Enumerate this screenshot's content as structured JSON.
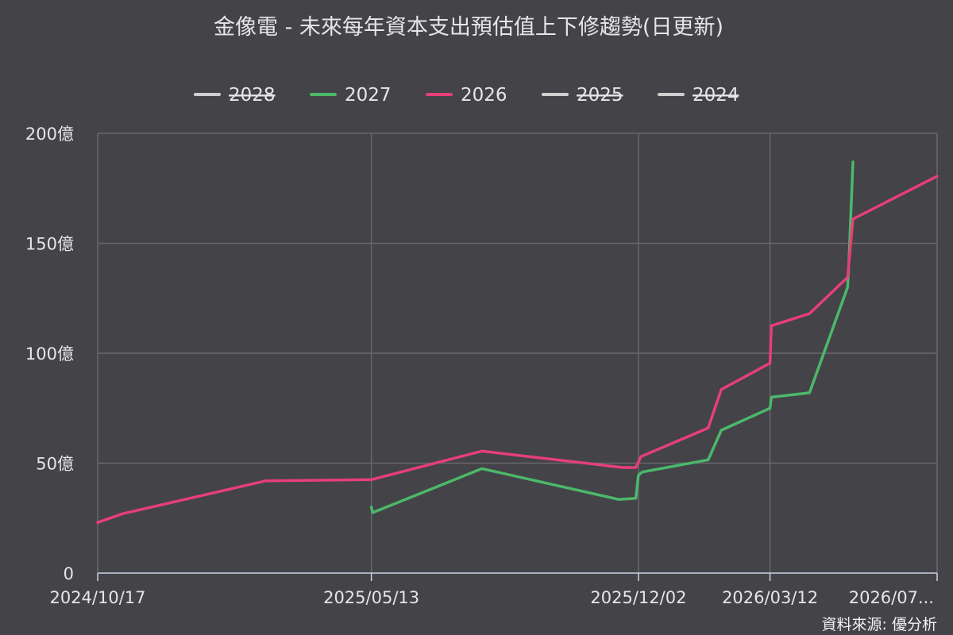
{
  "chart_data": {
    "type": "line",
    "title": "金像電 - 未來每年資本支出預估值上下修趨勢(日更新)",
    "source": "資料來源: 優分析",
    "y_unit": "億",
    "ylim": [
      0,
      200
    ],
    "y_ticks": [
      {
        "value": 0,
        "label": "0"
      },
      {
        "value": 50,
        "label": "50億"
      },
      {
        "value": 100,
        "label": "100億"
      },
      {
        "value": 150,
        "label": "150億"
      },
      {
        "value": 200,
        "label": "200億"
      }
    ],
    "xlim": [
      "2024-10-17",
      "2026-07-17"
    ],
    "x_ticks": [
      {
        "date": "2024-10-17",
        "label": "2024/10/17"
      },
      {
        "date": "2025-05-13",
        "label": "2025/05/13"
      },
      {
        "date": "2025-12-02",
        "label": "2025/12/02"
      },
      {
        "date": "2026-03-12",
        "label": "2026/03/12"
      },
      {
        "date": "2026-07-17",
        "label": "2026/07..."
      }
    ],
    "grid": true,
    "legend_position": "top-center",
    "series": [
      {
        "name": "2028",
        "color": "#d0d0d0",
        "visible": false,
        "points": []
      },
      {
        "name": "2027",
        "color": "#4cb86a",
        "visible": true,
        "points": [
          [
            "2025-05-13",
            30
          ],
          [
            "2025-05-14",
            27.5
          ],
          [
            "2025-08-05",
            47.5
          ],
          [
            "2025-11-17",
            33.5
          ],
          [
            "2025-11-30",
            34
          ],
          [
            "2025-12-02",
            44.5
          ],
          [
            "2025-12-05",
            46
          ],
          [
            "2026-01-24",
            51.5
          ],
          [
            "2026-02-03",
            65
          ],
          [
            "2026-03-12",
            75
          ],
          [
            "2026-03-13",
            80
          ],
          [
            "2026-04-11",
            82
          ],
          [
            "2026-05-10",
            130
          ],
          [
            "2026-05-11",
            142
          ],
          [
            "2026-05-14",
            187
          ]
        ]
      },
      {
        "name": "2026",
        "color": "#e63f77",
        "visible": true,
        "points": [
          [
            "2024-10-17",
            23
          ],
          [
            "2024-11-05",
            27
          ],
          [
            "2025-02-22",
            42
          ],
          [
            "2025-05-13",
            42.5
          ],
          [
            "2025-08-05",
            55.5
          ],
          [
            "2025-11-20",
            48
          ],
          [
            "2025-11-30",
            48
          ],
          [
            "2025-12-04",
            53
          ],
          [
            "2026-01-24",
            66
          ],
          [
            "2026-02-03",
            83.5
          ],
          [
            "2026-03-12",
            95.5
          ],
          [
            "2026-03-13",
            112.5
          ],
          [
            "2026-04-11",
            118
          ],
          [
            "2026-05-10",
            134.5
          ],
          [
            "2026-05-14",
            161
          ],
          [
            "2026-07-17",
            180.5
          ]
        ]
      },
      {
        "name": "2025",
        "color": "#d0d0d0",
        "visible": false,
        "points": []
      },
      {
        "name": "2024",
        "color": "#d0d0d0",
        "visible": false,
        "points": []
      }
    ]
  }
}
